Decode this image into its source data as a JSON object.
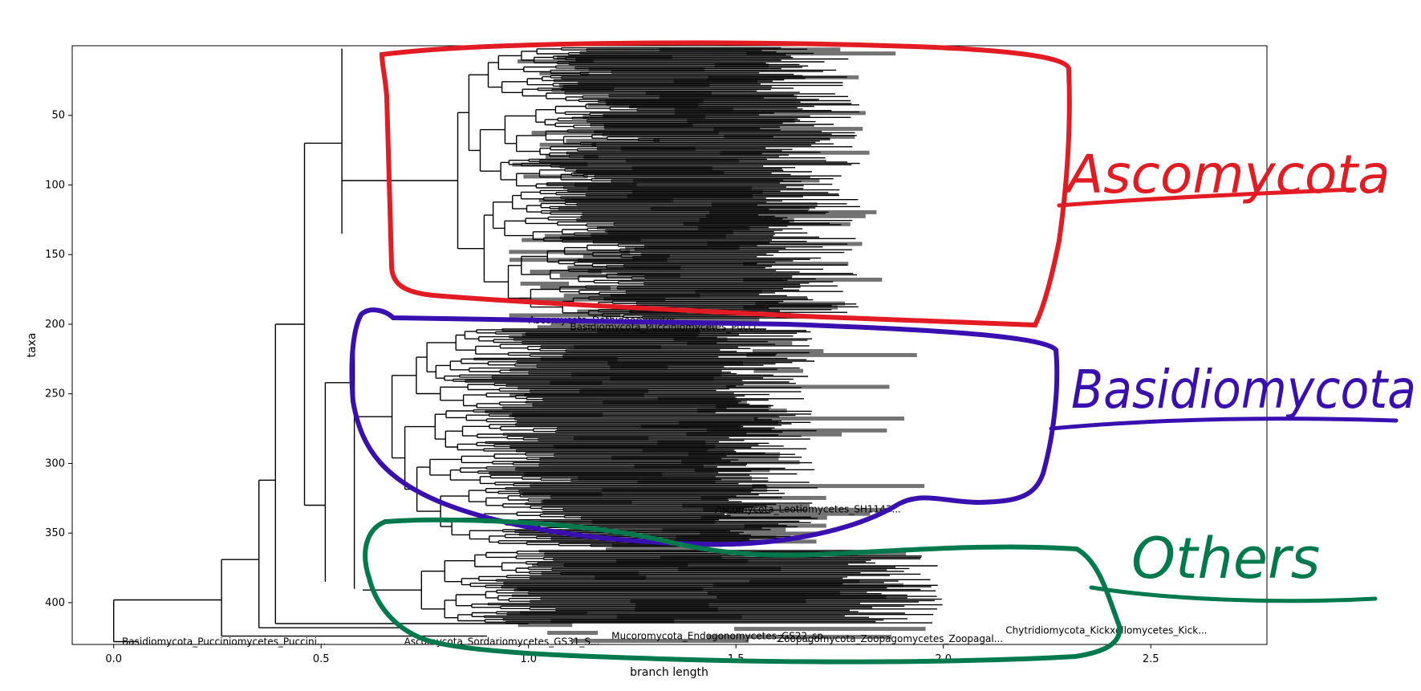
{
  "chart_data": {
    "type": "tree",
    "title": "",
    "xlabel": "branch length",
    "ylabel": "taxa",
    "xlim": [
      -0.1,
      2.78
    ],
    "ylim": [
      430,
      0
    ],
    "xticks": [
      "0.0",
      "0.5",
      "1.0",
      "1.5",
      "2.0",
      "2.5"
    ],
    "xtick_values": [
      0.0,
      0.5,
      1.0,
      1.5,
      2.0,
      2.5
    ],
    "yticks": [
      "50",
      "100",
      "150",
      "200",
      "250",
      "300",
      "350",
      "400"
    ],
    "ytick_values": [
      50,
      100,
      150,
      200,
      250,
      300,
      350,
      400
    ],
    "grid": false,
    "leaf_count": 430,
    "leaf_label_samples": [
      {
        "taxa": 197,
        "x": 1.0,
        "text": "Ascomycota_Dothideomycetes..."
      },
      {
        "taxa": 202,
        "x": 1.1,
        "text": "Basidiomycota_Pucciniomycetes_Pucci..."
      },
      {
        "taxa": 333,
        "x": 1.45,
        "text": "Ascomycota_Leotiomycetes_SH1143..."
      },
      {
        "taxa": 428,
        "x": 0.02,
        "text": "Basidiomycota_Pucciniomycetes_Puccini..."
      },
      {
        "taxa": 424,
        "x": 1.2,
        "text": "Mucoromycota_Endogonomycetes_GS22_sp..."
      },
      {
        "taxa": 426,
        "x": 1.6,
        "text": "Zoopagomycota_Zoopagomycetes_Zoopagal..."
      },
      {
        "taxa": 420,
        "x": 2.15,
        "text": "Chytridiomycota_Kickxellomycetes_Kick..."
      },
      {
        "taxa": 428,
        "x": 0.7,
        "text": "Ascomycota_Sordariomycetes_GS31_S..."
      }
    ]
  },
  "annotations": [
    {
      "text": "Ascomycota",
      "color": "#e31b23"
    },
    {
      "text": "Basidiomycota",
      "color": "#3a0fb0"
    },
    {
      "text": "Others",
      "color": "#007a4d"
    }
  ]
}
